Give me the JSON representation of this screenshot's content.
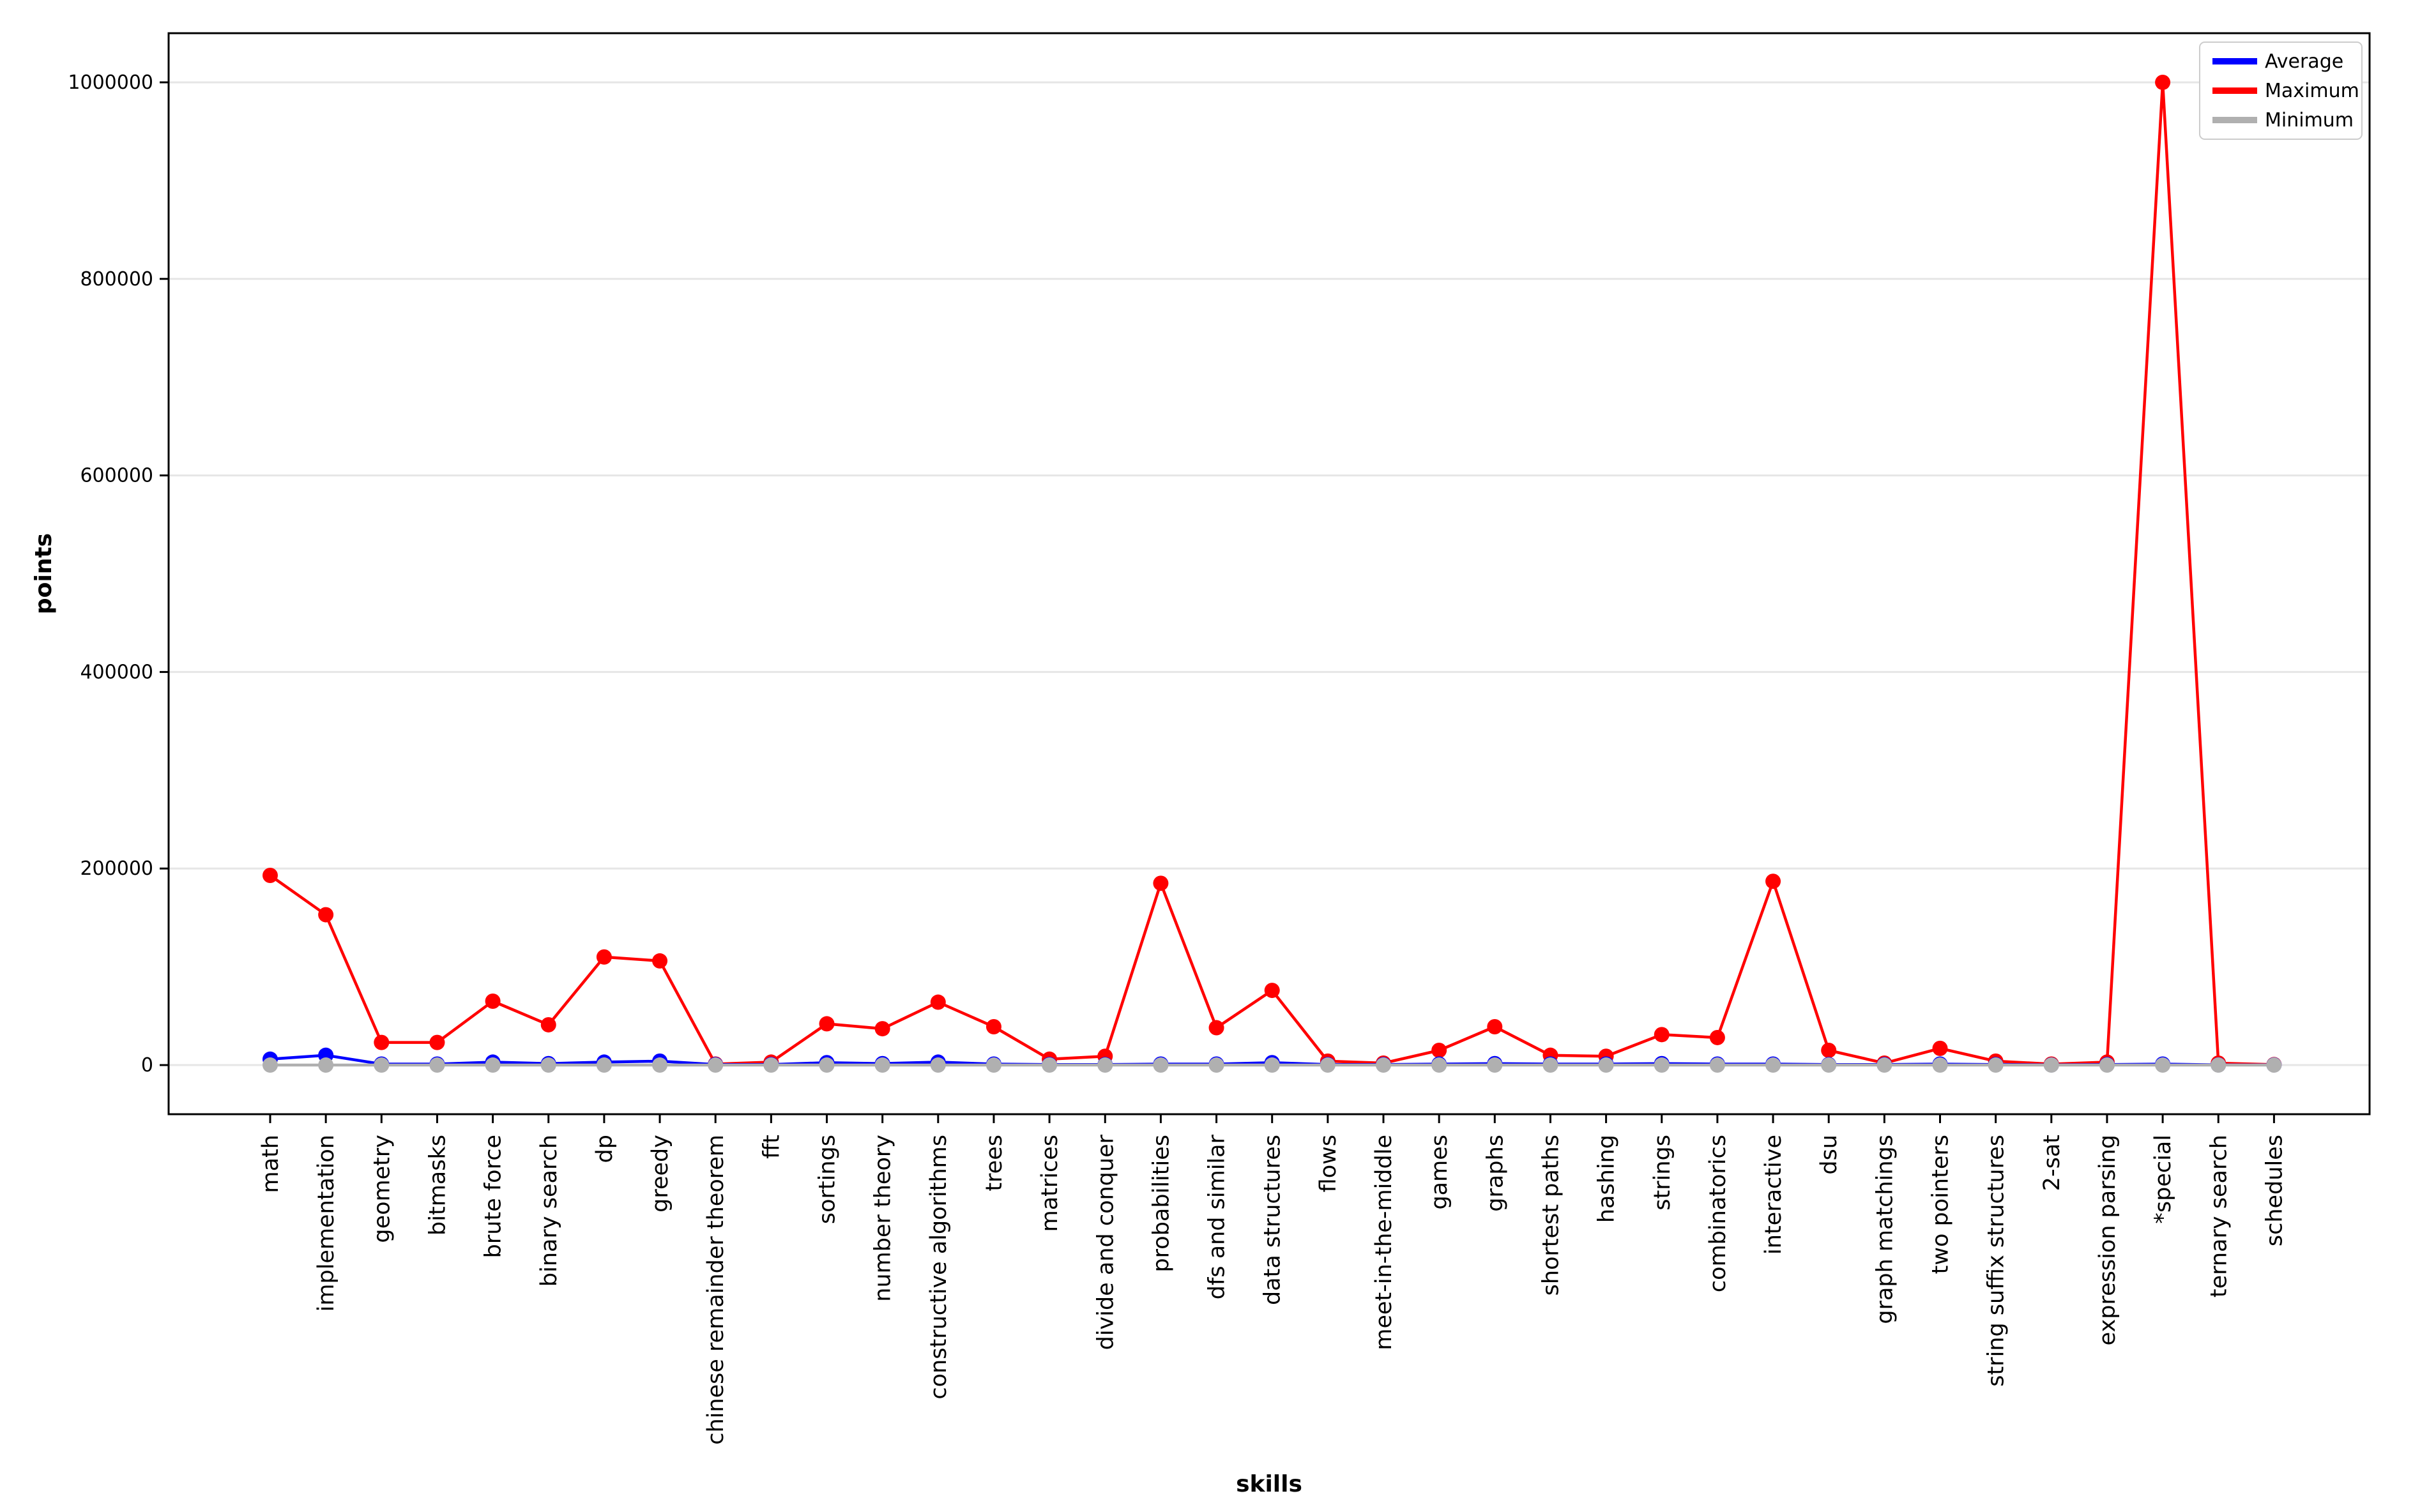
{
  "chart_data": {
    "type": "line",
    "title": "",
    "xlabel": "skills",
    "ylabel": "points",
    "ylim": [
      -50000,
      1050000
    ],
    "yticks": [
      0,
      200000,
      400000,
      600000,
      800000,
      1000000
    ],
    "ytick_labels": [
      "0",
      "200000",
      "400000",
      "600000",
      "800000",
      "1000000"
    ],
    "grid": "horizontal",
    "legend_position": "top-right",
    "categories": [
      "math",
      "implementation",
      "geometry",
      "bitmasks",
      "brute force",
      "binary search",
      "dp",
      "greedy",
      "chinese remainder theorem",
      "fft",
      "sortings",
      "number theory",
      "constructive algorithms",
      "trees",
      "matrices",
      "divide and conquer",
      "probabilities",
      "dfs and similar",
      "data structures",
      "flows",
      "meet-in-the-middle",
      "games",
      "graphs",
      "shortest paths",
      "hashing",
      "strings",
      "combinatorics",
      "interactive",
      "dsu",
      "graph matchings",
      "two pointers",
      "string suffix structures",
      "2-sat",
      "expression parsing",
      "*special",
      "ternary search",
      "schedules"
    ],
    "series": [
      {
        "name": "Average",
        "color": "#0000ff",
        "values": [
          6000,
          10000,
          1000,
          1000,
          3000,
          1500,
          3000,
          4000,
          500,
          500,
          2500,
          1500,
          3000,
          1000,
          500,
          500,
          1000,
          1000,
          2500,
          500,
          500,
          1000,
          1500,
          1000,
          1000,
          1500,
          1000,
          1000,
          500,
          500,
          1000,
          500,
          200,
          500,
          1000,
          200,
          200
        ]
      },
      {
        "name": "Maximum",
        "color": "#ff0000",
        "values": [
          193000,
          153000,
          23000,
          23000,
          65000,
          41000,
          110000,
          106000,
          1000,
          3000,
          42000,
          37000,
          64000,
          39000,
          6000,
          9000,
          185000,
          38000,
          76000,
          4000,
          2000,
          15000,
          39000,
          10000,
          9000,
          31000,
          28000,
          187000,
          15000,
          2000,
          17000,
          4000,
          1000,
          3000,
          1000000,
          2000,
          500
        ]
      },
      {
        "name": "Minimum",
        "color": "#b0b0b0",
        "values": [
          0,
          0,
          0,
          0,
          0,
          0,
          0,
          0,
          0,
          0,
          0,
          0,
          0,
          0,
          0,
          0,
          0,
          0,
          0,
          0,
          0,
          0,
          0,
          0,
          0,
          0,
          0,
          0,
          0,
          0,
          0,
          0,
          0,
          0,
          0,
          0,
          0
        ]
      }
    ]
  }
}
